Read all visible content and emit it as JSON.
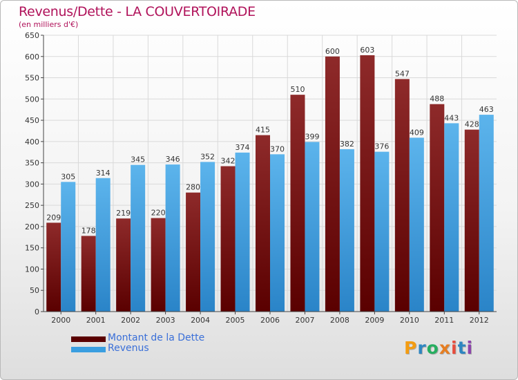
{
  "title": "Revenus/Dette - LA COUVERTOIRADE",
  "subtitle": "(en milliers d'€)",
  "logo": {
    "text": "Proxiti",
    "letters": [
      {
        "ch": "P",
        "color": "#f39c12"
      },
      {
        "ch": "r",
        "color": "#2e86c1"
      },
      {
        "ch": "o",
        "color": "#27ae60"
      },
      {
        "ch": "x",
        "color": "#e67e22"
      },
      {
        "ch": "i",
        "color": "#e74c3c"
      },
      {
        "ch": "t",
        "color": "#2e86c1"
      },
      {
        "ch": "i",
        "color": "#8e44ad"
      }
    ]
  },
  "colors": {
    "dette": "#7a1010",
    "revenus": "#3a9ee0",
    "grid": "#d9d9d9",
    "axis": "#444444",
    "label": "#333333"
  },
  "chart_data": {
    "type": "bar",
    "title": "Revenus/Dette - LA COUVERTOIRADE",
    "subtitle": "(en milliers d'€)",
    "xlabel": "",
    "ylabel": "",
    "ylim": [
      0,
      650
    ],
    "ytick_step": 50,
    "yticks": [
      "0",
      "50",
      "100",
      "150",
      "200",
      "250",
      "300",
      "350",
      "400",
      "450",
      "500",
      "550",
      "600",
      "650"
    ],
    "grid": true,
    "legend_position": "bottom-left",
    "categories": [
      "2000",
      "2001",
      "2002",
      "2003",
      "2004",
      "2005",
      "2006",
      "2007",
      "2008",
      "2009",
      "2010",
      "2011",
      "2012"
    ],
    "series": [
      {
        "name": "Montant de la Dette",
        "color": "#7a1010",
        "values": [
          209,
          178,
          219,
          220,
          280,
          342,
          415,
          510,
          600,
          603,
          547,
          488,
          428
        ],
        "labels": [
          "209",
          "178",
          "219",
          "220",
          "280",
          "342",
          "415",
          "510",
          "600",
          "603",
          "547",
          "488",
          "428"
        ]
      },
      {
        "name": "Revenus",
        "color": "#3a9ee0",
        "values": [
          305,
          314,
          345,
          346,
          352,
          374,
          370,
          399,
          382,
          376,
          409,
          443,
          463
        ],
        "labels": [
          "305",
          "314",
          "345",
          "346",
          "352",
          "374",
          "370",
          "399",
          "382",
          "376",
          "409",
          "443",
          "463"
        ]
      }
    ]
  }
}
